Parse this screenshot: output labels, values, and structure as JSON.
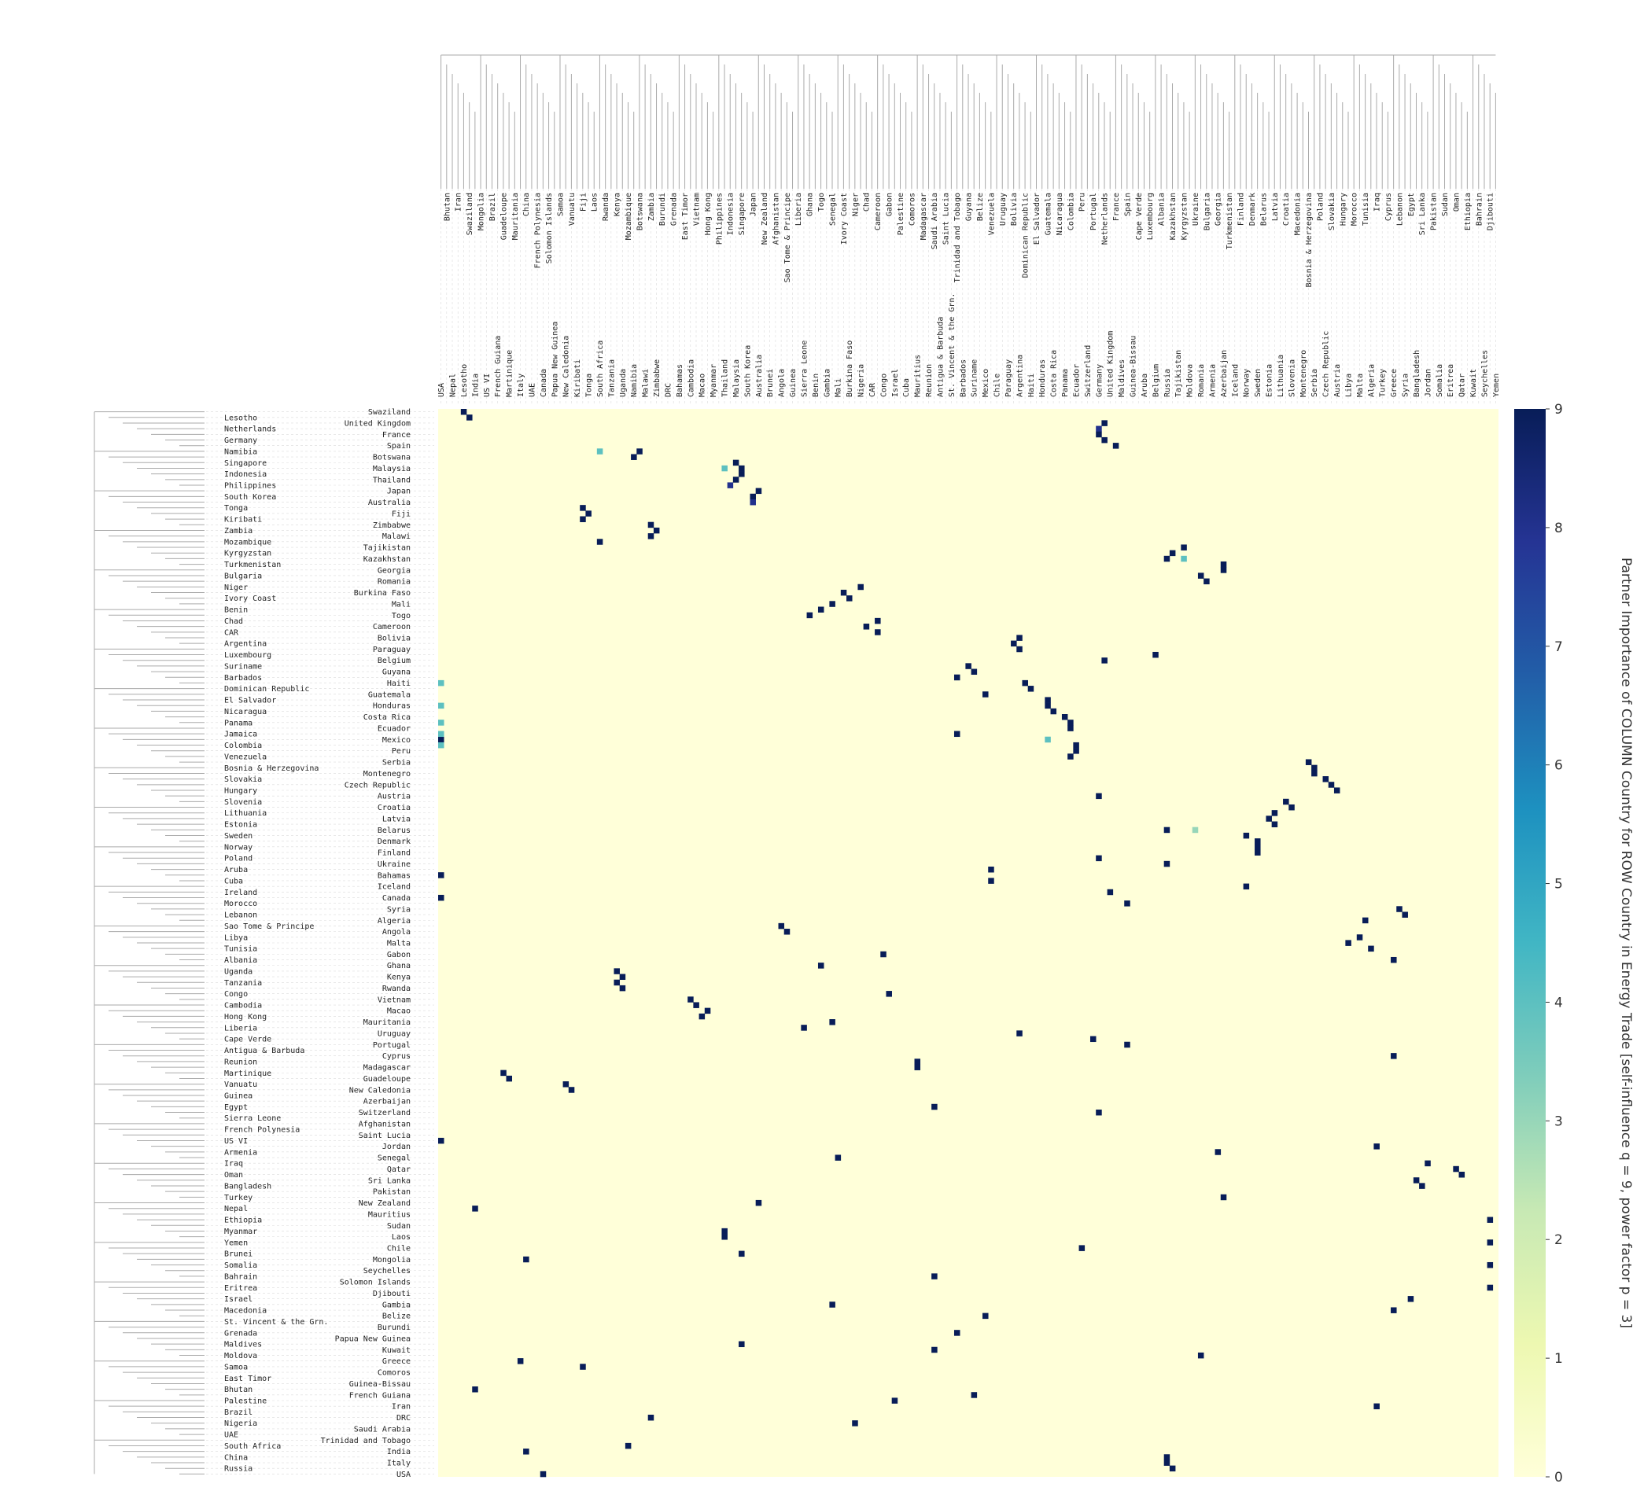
{
  "chart_data": {
    "type": "heatmap",
    "colorbar_label": "Partner Importance of COLUMN Country for ROW Country in Energy Trade [self-influence q = 9, power factor p = 3]",
    "clim": [
      0,
      9
    ],
    "cticks": [
      0,
      1,
      2,
      3,
      4,
      5,
      6,
      7,
      8,
      9
    ],
    "colormap": [
      "#ffffd9",
      "#edf8b1",
      "#c7e9b4",
      "#7fcdbb",
      "#41b6c4",
      "#1d91c0",
      "#225ea8",
      "#253494",
      "#081d58"
    ],
    "rows": [
      "Swaziland",
      "Lesotho",
      "United Kingdom",
      "Netherlands",
      "France",
      "Germany",
      "Spain",
      "Namibia",
      "Botswana",
      "Singapore",
      "Malaysia",
      "Indonesia",
      "Thailand",
      "Philippines",
      "Japan",
      "South Korea",
      "Australia",
      "Tonga",
      "Fiji",
      "Kiribati",
      "Zimbabwe",
      "Zambia",
      "Malawi",
      "Mozambique",
      "Tajikistan",
      "Kyrgyzstan",
      "Kazakhstan",
      "Turkmenistan",
      "Georgia",
      "Bulgaria",
      "Romania",
      "Niger",
      "Burkina Faso",
      "Ivory Coast",
      "Mali",
      "Benin",
      "Togo",
      "Chad",
      "Cameroon",
      "CAR",
      "Bolivia",
      "Argentina",
      "Paraguay",
      "Luxembourg",
      "Belgium",
      "Suriname",
      "Guyana",
      "Barbados",
      "Haiti",
      "Dominican Republic",
      "Guatemala",
      "El Salvador",
      "Honduras",
      "Nicaragua",
      "Costa Rica",
      "Panama",
      "Ecuador",
      "Jamaica",
      "Mexico",
      "Colombia",
      "Peru",
      "Venezuela",
      "Serbia",
      "Bosnia & Herzegovina",
      "Montenegro",
      "Slovakia",
      "Czech Republic",
      "Hungary",
      "Austria",
      "Slovenia",
      "Croatia",
      "Lithuania",
      "Latvia",
      "Estonia",
      "Belarus",
      "Sweden",
      "Denmark",
      "Norway",
      "Finland",
      "Poland",
      "Ukraine",
      "Aruba",
      "Bahamas",
      "Cuba",
      "Iceland",
      "Ireland",
      "Canada",
      "Morocco",
      "Syria",
      "Lebanon",
      "Algeria",
      "Sao Tome & Principe",
      "Angola",
      "Libya",
      "Malta",
      "Tunisia",
      "Gabon",
      "Albania",
      "Ghana",
      "Uganda",
      "Kenya",
      "Tanzania",
      "Rwanda",
      "Congo",
      "Vietnam",
      "Cambodia",
      "Macao",
      "Hong Kong",
      "Mauritania",
      "Liberia",
      "Uruguay",
      "Cape Verde",
      "Portugal",
      "Antigua & Barbuda",
      "Cyprus",
      "Reunion",
      "Madagascar",
      "Martinique",
      "Guadeloupe",
      "Vanuatu",
      "New Caledonia",
      "Guinea",
      "Azerbaijan",
      "Egypt",
      "Switzerland",
      "Sierra Leone",
      "Afghanistan",
      "French Polynesia",
      "Saint Lucia",
      "US VI",
      "Jordan",
      "Armenia",
      "Senegal",
      "Iraq",
      "Qatar",
      "Oman",
      "Sri Lanka",
      "Bangladesh",
      "Pakistan",
      "Turkey",
      "New Zealand",
      "Nepal",
      "Mauritius",
      "Ethiopia",
      "Sudan",
      "Myanmar",
      "Laos",
      "Yemen",
      "Chile",
      "Brunei",
      "Mongolia",
      "Somalia",
      "Seychelles",
      "Bahrain",
      "Solomon Islands",
      "Eritrea",
      "Djibouti",
      "Israel",
      "Gambia",
      "Macedonia",
      "Belize",
      "St. Vincent & the Grn.",
      "Burundi",
      "Grenada",
      "Papua New Guinea",
      "Maldives",
      "Kuwait",
      "Moldova",
      "Greece",
      "Samoa",
      "Comoros",
      "East Timor",
      "Guinea-Bissau",
      "Bhutan",
      "French Guiana",
      "Palestine",
      "Iran",
      "Brazil",
      "DRC",
      "Nigeria",
      "Saudi Arabia",
      "UAE",
      "Trinidad and Tobago",
      "South Africa",
      "India",
      "China",
      "Italy",
      "Russia",
      "USA"
    ],
    "columns": [
      "USA",
      "Bhutan",
      "Nepal",
      "Iran",
      "Lesotho",
      "Swaziland",
      "India",
      "Mongolia",
      "US VI",
      "Brazil",
      "French Guiana",
      "Guadeloupe",
      "Martinique",
      "Mauritania",
      "Italy",
      "China",
      "UAE",
      "French Polynesia",
      "Canada",
      "Solomon Islands",
      "Papua New Guinea",
      "Samoa",
      "New Caledonia",
      "Vanuatu",
      "Kiribati",
      "Fiji",
      "Tonga",
      "Laos",
      "South Africa",
      "Rwanda",
      "Tanzania",
      "Kenya",
      "Uganda",
      "Mozambique",
      "Namibia",
      "Botswana",
      "Malawi",
      "Zambia",
      "Zimbabwe",
      "Burundi",
      "DRC",
      "Grenada",
      "Bahamas",
      "East Timor",
      "Cambodia",
      "Vietnam",
      "Macao",
      "Hong Kong",
      "Myanmar",
      "Philippines",
      "Thailand",
      "Indonesia",
      "Malaysia",
      "Singapore",
      "South Korea",
      "Japan",
      "Australia",
      "New Zealand",
      "Brunei",
      "Afghanistan",
      "Angola",
      "Sao Tome & Principe",
      "Guinea",
      "Liberia",
      "Sierra Leone",
      "Ghana",
      "Benin",
      "Togo",
      "Gambia",
      "Senegal",
      "Mali",
      "Ivory Coast",
      "Burkina Faso",
      "Niger",
      "Nigeria",
      "Chad",
      "CAR",
      "Cameroon",
      "Congo",
      "Gabon",
      "Israel",
      "Palestine",
      "Cuba",
      "Comoros",
      "Mauritius",
      "Madagascar",
      "Reunion",
      "Saudi Arabia",
      "Antigua & Barbuda",
      "Saint Lucia",
      "St. Vincent & the Grn.",
      "Trinidad and Tobago",
      "Barbados",
      "Guyana",
      "Suriname",
      "Belize",
      "Mexico",
      "Venezuela",
      "Chile",
      "Uruguay",
      "Paraguay",
      "Bolivia",
      "Argentina",
      "Dominican Republic",
      "Haiti",
      "El Salvador",
      "Honduras",
      "Guatemala",
      "Costa Rica",
      "Nicaragua",
      "Panama",
      "Colombia",
      "Ecuador",
      "Peru",
      "Switzerland",
      "Portugal",
      "Germany",
      "Netherlands",
      "United Kingdom",
      "France",
      "Maldives",
      "Spain",
      "Guinea-Bissau",
      "Cape Verde",
      "Aruba",
      "Luxembourg",
      "Belgium",
      "Albania",
      "Russia",
      "Kazakhstan",
      "Tajikistan",
      "Kyrgyzstan",
      "Moldova",
      "Ukraine",
      "Romania",
      "Bulgaria",
      "Armenia",
      "Georgia",
      "Azerbaijan",
      "Turkmenistan",
      "Iceland",
      "Finland",
      "Norway",
      "Denmark",
      "Sweden",
      "Belarus",
      "Estonia",
      "Latvia",
      "Lithuania",
      "Croatia",
      "Slovenia",
      "Macedonia",
      "Montenegro",
      "Bosnia & Herzegovina",
      "Serbia",
      "Poland",
      "Czech Republic",
      "Slovakia",
      "Austria",
      "Hungary",
      "Libya",
      "Morocco",
      "Malta",
      "Tunisia",
      "Algeria",
      "Iraq",
      "Turkey",
      "Cyprus",
      "Greece",
      "Lebanon",
      "Syria",
      "Egypt",
      "Bangladesh",
      "Sri Lanka",
      "Jordan",
      "Pakistan",
      "Somalia",
      "Sudan",
      "Eritrea",
      "Oman",
      "Qatar",
      "Ethiopia",
      "Kuwait",
      "Bahrain",
      "Seychelles",
      "Djibouti",
      "Yemen"
    ],
    "cells": [
      [
        "Swaziland",
        "Lesotho",
        9
      ],
      [
        "Lesotho",
        "Swaziland",
        9
      ],
      [
        "United Kingdom",
        "Netherlands",
        9
      ],
      [
        "Netherlands",
        "Germany",
        8
      ],
      [
        "France",
        "Germany",
        9
      ],
      [
        "Germany",
        "Netherlands",
        9
      ],
      [
        "Spain",
        "France",
        9
      ],
      [
        "Namibia",
        "Botswana",
        9
      ],
      [
        "Botswana",
        "Namibia",
        9
      ],
      [
        "Namibia",
        "South Africa",
        4
      ],
      [
        "Singapore",
        "Malaysia",
        9
      ],
      [
        "Malaysia",
        "Singapore",
        9
      ],
      [
        "Indonesia",
        "Singapore",
        9
      ],
      [
        "Thailand",
        "Malaysia",
        9
      ],
      [
        "Philippines",
        "Indonesia",
        8
      ],
      [
        "Japan",
        "Australia",
        9
      ],
      [
        "South Korea",
        "Japan",
        9
      ],
      [
        "Australia",
        "Japan",
        8
      ],
      [
        "Tonga",
        "Fiji",
        9
      ],
      [
        "Fiji",
        "Tonga",
        9
      ],
      [
        "Kiribati",
        "Fiji",
        9
      ],
      [
        "Zimbabwe",
        "Zambia",
        9
      ],
      [
        "Zambia",
        "Zimbabwe",
        9
      ],
      [
        "Malawi",
        "Zambia",
        9
      ],
      [
        "Mozambique",
        "South Africa",
        9
      ],
      [
        "Tajikistan",
        "Kyrgyzstan",
        9
      ],
      [
        "Kyrgyzstan",
        "Kazakhstan",
        9
      ],
      [
        "Kazakhstan",
        "Russia",
        9
      ],
      [
        "Turkmenistan",
        "Azerbaijan",
        9
      ],
      [
        "Georgia",
        "Azerbaijan",
        9
      ],
      [
        "Bulgaria",
        "Romania",
        9
      ],
      [
        "Romania",
        "Bulgaria",
        9
      ],
      [
        "Niger",
        "Nigeria",
        9
      ],
      [
        "Burkina Faso",
        "Ivory Coast",
        9
      ],
      [
        "Ivory Coast",
        "Burkina Faso",
        9
      ],
      [
        "Mali",
        "Senegal",
        9
      ],
      [
        "Benin",
        "Togo",
        9
      ],
      [
        "Togo",
        "Ghana",
        9
      ],
      [
        "Chad",
        "Cameroon",
        9
      ],
      [
        "Cameroon",
        "Chad",
        9
      ],
      [
        "CAR",
        "Cameroon",
        9
      ],
      [
        "Bolivia",
        "Argentina",
        9
      ],
      [
        "Argentina",
        "Bolivia",
        9
      ],
      [
        "Paraguay",
        "Argentina",
        9
      ],
      [
        "Luxembourg",
        "Belgium",
        9
      ],
      [
        "Belgium",
        "Netherlands",
        9
      ],
      [
        "Suriname",
        "Guyana",
        9
      ],
      [
        "Guyana",
        "Suriname",
        9
      ],
      [
        "Barbados",
        "Trinidad and Tobago",
        9
      ],
      [
        "Haiti",
        "Dominican Republic",
        9
      ],
      [
        "Dominican Republic",
        "Haiti",
        9
      ],
      [
        "Guatemala",
        "Mexico",
        9
      ],
      [
        "El Salvador",
        "Guatemala",
        9
      ],
      [
        "Honduras",
        "Guatemala",
        9
      ],
      [
        "Nicaragua",
        "Costa Rica",
        9
      ],
      [
        "Costa Rica",
        "Panama",
        9
      ],
      [
        "Panama",
        "Colombia",
        9
      ],
      [
        "Ecuador",
        "Colombia",
        9
      ],
      [
        "Jamaica",
        "Trinidad and Tobago",
        9
      ],
      [
        "Mexico",
        "USA",
        9
      ],
      [
        "Colombia",
        "Ecuador",
        9
      ],
      [
        "Peru",
        "Ecuador",
        9
      ],
      [
        "Venezuela",
        "Colombia",
        9
      ],
      [
        "Serbia",
        "Bosnia & Herzegovina",
        9
      ],
      [
        "Bosnia & Herzegovina",
        "Serbia",
        9
      ],
      [
        "Montenegro",
        "Serbia",
        9
      ],
      [
        "Slovakia",
        "Czech Republic",
        9
      ],
      [
        "Czech Republic",
        "Slovakia",
        9
      ],
      [
        "Hungary",
        "Austria",
        9
      ],
      [
        "Austria",
        "Germany",
        9
      ],
      [
        "Slovenia",
        "Croatia",
        9
      ],
      [
        "Croatia",
        "Slovenia",
        9
      ],
      [
        "Lithuania",
        "Latvia",
        9
      ],
      [
        "Latvia",
        "Estonia",
        9
      ],
      [
        "Estonia",
        "Latvia",
        9
      ],
      [
        "Belarus",
        "Russia",
        9
      ],
      [
        "Sweden",
        "Norway",
        9
      ],
      [
        "Denmark",
        "Sweden",
        9
      ],
      [
        "Norway",
        "Sweden",
        9
      ],
      [
        "Finland",
        "Sweden",
        9
      ],
      [
        "Poland",
        "Germany",
        9
      ],
      [
        "Ukraine",
        "Russia",
        9
      ],
      [
        "Aruba",
        "Venezuela",
        9
      ],
      [
        "Bahamas",
        "USA",
        9
      ],
      [
        "Cuba",
        "Venezuela",
        9
      ],
      [
        "Iceland",
        "Norway",
        9
      ],
      [
        "Ireland",
        "United Kingdom",
        9
      ],
      [
        "Canada",
        "USA",
        9
      ],
      [
        "Morocco",
        "Spain",
        9
      ],
      [
        "Syria",
        "Lebanon",
        9
      ],
      [
        "Lebanon",
        "Syria",
        9
      ],
      [
        "Algeria",
        "Tunisia",
        9
      ],
      [
        "Sao Tome & Principe",
        "Angola",
        9
      ],
      [
        "Angola",
        "Sao Tome & Principe",
        9
      ],
      [
        "Libya",
        "Malta",
        9
      ],
      [
        "Malta",
        "Libya",
        9
      ],
      [
        "Tunisia",
        "Algeria",
        9
      ],
      [
        "Gabon",
        "Congo",
        9
      ],
      [
        "Albania",
        "Greece",
        9
      ],
      [
        "Ghana",
        "Togo",
        9
      ],
      [
        "Uganda",
        "Kenya",
        9
      ],
      [
        "Kenya",
        "Uganda",
        9
      ],
      [
        "Tanzania",
        "Kenya",
        9
      ],
      [
        "Rwanda",
        "Uganda",
        9
      ],
      [
        "Congo",
        "Gabon",
        9
      ],
      [
        "Vietnam",
        "Cambodia",
        9
      ],
      [
        "Cambodia",
        "Vietnam",
        9
      ],
      [
        "Macao",
        "Hong Kong",
        9
      ],
      [
        "Hong Kong",
        "Macao",
        9
      ],
      [
        "Mauritania",
        "Senegal",
        9
      ],
      [
        "Liberia",
        "Sierra Leone",
        9
      ],
      [
        "Uruguay",
        "Argentina",
        9
      ],
      [
        "Cape Verde",
        "Portugal",
        9
      ],
      [
        "Portugal",
        "Spain",
        9
      ],
      [
        "Cyprus",
        "Greece",
        9
      ],
      [
        "Madagascar",
        "Mauritius",
        9
      ],
      [
        "Reunion",
        "Mauritius",
        9
      ],
      [
        "Martinique",
        "Guadeloupe",
        9
      ],
      [
        "Guadeloupe",
        "Martinique",
        9
      ],
      [
        "Vanuatu",
        "New Caledonia",
        9
      ],
      [
        "New Caledonia",
        "Vanuatu",
        9
      ],
      [
        "Egypt",
        "Saudi Arabia",
        9
      ],
      [
        "Switzerland",
        "Germany",
        9
      ],
      [
        "US VI",
        "USA",
        9
      ],
      [
        "Jordan",
        "Iraq",
        9
      ],
      [
        "Armenia",
        "Georgia",
        9
      ],
      [
        "Senegal",
        "Mali",
        9
      ],
      [
        "Iraq",
        "Jordan",
        9
      ],
      [
        "Qatar",
        "Oman",
        9
      ],
      [
        "Oman",
        "Qatar",
        9
      ],
      [
        "Sri Lanka",
        "Bangladesh",
        9
      ],
      [
        "Bangladesh",
        "Sri Lanka",
        9
      ],
      [
        "Turkey",
        "Azerbaijan",
        9
      ],
      [
        "New Zealand",
        "Australia",
        9
      ],
      [
        "Nepal",
        "India",
        9
      ],
      [
        "Ethiopia",
        "Djibouti",
        9
      ],
      [
        "Myanmar",
        "Thailand",
        9
      ],
      [
        "Laos",
        "Thailand",
        9
      ],
      [
        "Yemen",
        "Djibouti",
        9
      ],
      [
        "Chile",
        "Peru",
        9
      ],
      [
        "Brunei",
        "Singapore",
        9
      ],
      [
        "Mongolia",
        "China",
        9
      ],
      [
        "Somalia",
        "Djibouti",
        9
      ],
      [
        "Bahrain",
        "Saudi Arabia",
        9
      ],
      [
        "Eritrea",
        "Djibouti",
        9
      ],
      [
        "Israel",
        "Egypt",
        9
      ],
      [
        "Gambia",
        "Senegal",
        9
      ],
      [
        "Macedonia",
        "Greece",
        9
      ],
      [
        "Belize",
        "Mexico",
        9
      ],
      [
        "Grenada",
        "Trinidad and Tobago",
        9
      ],
      [
        "Maldives",
        "Singapore",
        9
      ],
      [
        "Kuwait",
        "Saudi Arabia",
        9
      ],
      [
        "Moldova",
        "Romania",
        9
      ],
      [
        "Greece",
        "Italy",
        9
      ],
      [
        "Samoa",
        "Fiji",
        9
      ],
      [
        "Bhutan",
        "India",
        9
      ],
      [
        "French Guiana",
        "Suriname",
        9
      ],
      [
        "Palestine",
        "Israel",
        9
      ],
      [
        "Iran",
        "Iraq",
        9
      ],
      [
        "DRC",
        "Zambia",
        9
      ],
      [
        "Nigeria",
        "Niger",
        9
      ],
      [
        "South Africa",
        "Mozambique",
        9
      ],
      [
        "India",
        "China",
        9
      ],
      [
        "China",
        "Russia",
        9
      ],
      [
        "Italy",
        "Russia",
        9
      ],
      [
        "Russia",
        "Kazakhstan",
        9
      ],
      [
        "USA",
        "Canada",
        9
      ],
      [
        "Haiti",
        "USA",
        4
      ],
      [
        "Honduras",
        "USA",
        4
      ],
      [
        "Jamaica",
        "USA",
        4
      ],
      [
        "Colombia",
        "USA",
        4
      ],
      [
        "Panama",
        "USA",
        4
      ],
      [
        "Kazakhstan",
        "Kyrgyzstan",
        4
      ],
      [
        "Belarus",
        "Ukraine",
        3
      ],
      [
        "Malaysia",
        "Thailand",
        4
      ],
      [
        "Mexico",
        "Guatemala",
        4
      ]
    ]
  }
}
